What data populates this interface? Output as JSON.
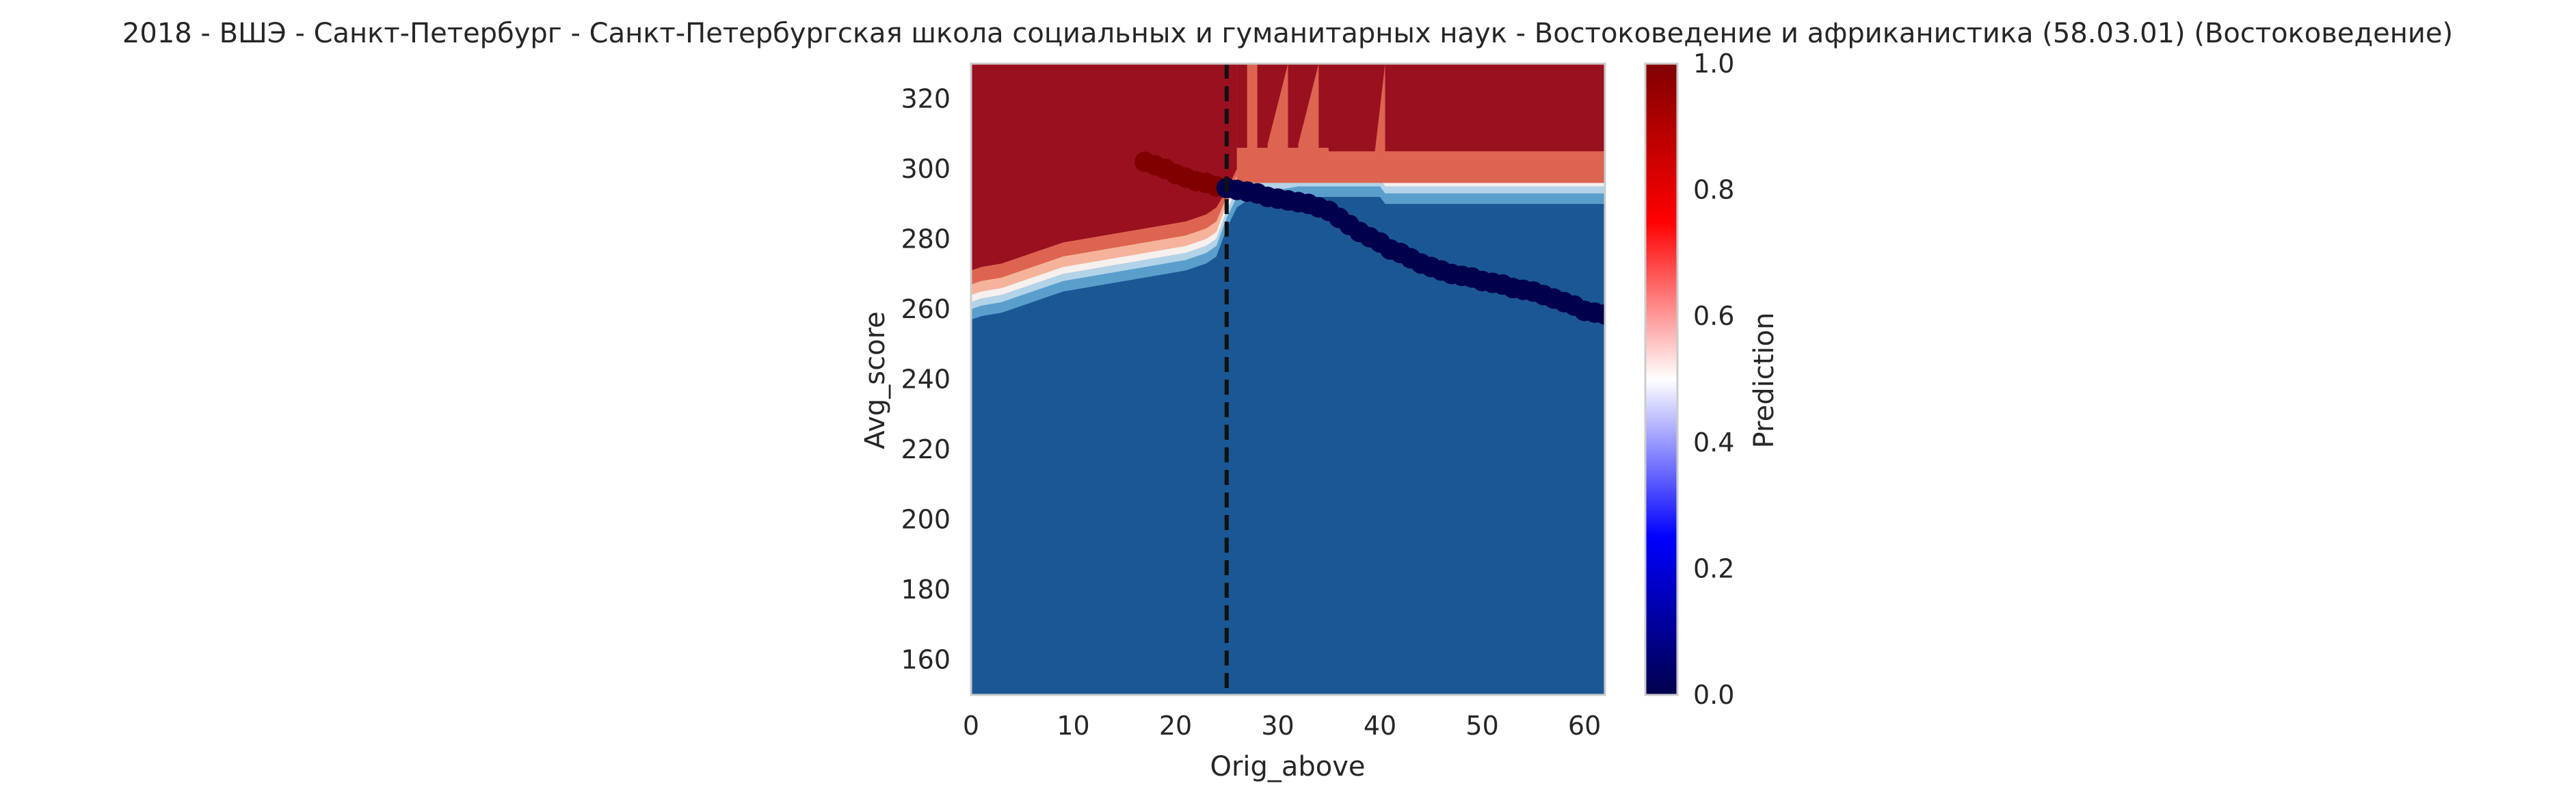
{
  "chart_data": {
    "type": "heatmap",
    "subtype": "filled-contour decision map with scatter overlay",
    "title": "2018 - ВШЭ - Санкт-Петербург - Санкт-Петербургская школа социальных и гуманитарных наук - Востоковедение и африканистика (58.03.01) (Востоковедение)",
    "xlabel": "Orig_above",
    "ylabel": "Avg_score",
    "xlim": [
      0,
      62
    ],
    "ylim": [
      150,
      330
    ],
    "x_ticks": [
      0,
      10,
      20,
      30,
      40,
      50,
      60
    ],
    "y_ticks": [
      160,
      180,
      200,
      220,
      240,
      260,
      280,
      300,
      320
    ],
    "grid": false,
    "colorbar": {
      "label": "Prediction",
      "range": [
        0,
        1
      ],
      "ticks": [
        "0.0",
        "0.2",
        "0.4",
        "0.6",
        "0.8",
        "1.0"
      ],
      "colormap": "seismic",
      "colors": [
        "#00004c",
        "#0000ff",
        "#ffffff",
        "#ff0000",
        "#800000"
      ]
    },
    "region_colors": {
      "high": "#99101f",
      "mid_high": "#dd6451",
      "light_high": "#f5b39b",
      "neutral": "#f6f0ee",
      "light_low": "#b3d3e8",
      "mid_low": "#5a9fcc",
      "low": "#1b5795"
    },
    "vertical_line": {
      "x": 25,
      "style": "dashed",
      "color": "#000000"
    },
    "boundary": {
      "x": [
        0,
        1,
        3,
        5,
        7,
        9,
        11,
        13,
        15,
        17,
        19,
        21,
        22,
        23,
        24,
        25,
        26,
        27,
        28,
        29,
        30,
        32,
        34,
        36,
        38,
        40,
        40.5,
        45,
        50,
        55,
        60,
        62
      ],
      "y": [
        262,
        263,
        264,
        266,
        268,
        270,
        271,
        272,
        273,
        274,
        275,
        276,
        277,
        278,
        280,
        288,
        294,
        296,
        296,
        296,
        296,
        297,
        297,
        297,
        297,
        297,
        295,
        295,
        295,
        295,
        295,
        295
      ]
    },
    "contour_offsets": {
      "left": [
        0,
        2,
        5,
        9,
        14
      ],
      "right": [
        0,
        2,
        4,
        6,
        8
      ]
    },
    "upper_bands": {
      "y_start": 296,
      "x": [
        26,
        27,
        28,
        29,
        31,
        32,
        34,
        35,
        39.5,
        40.5,
        62
      ],
      "y_top": [
        330,
        330,
        330,
        307,
        330,
        307,
        330,
        305,
        305,
        330,
        330
      ]
    },
    "lower_right_band": {
      "x": [
        40,
        45,
        50,
        55,
        60,
        62
      ],
      "y_low": [
        296,
        296,
        296,
        296,
        296,
        296
      ],
      "y_high": [
        303,
        303,
        303,
        303,
        303,
        303
      ]
    },
    "scatter": {
      "series": [
        {
          "prediction": 1,
          "color": "#800000",
          "x": [
            17,
            18,
            19,
            20,
            21,
            22,
            23,
            24,
            25
          ],
          "y": [
            302,
            301,
            300,
            298.5,
            297.5,
            296.5,
            296,
            295,
            294.5
          ]
        },
        {
          "prediction": 0,
          "color": "#00004c",
          "x": [
            25,
            26,
            27,
            28,
            29,
            30,
            31,
            32,
            33,
            34,
            35,
            36,
            37,
            38,
            39,
            40,
            41,
            42,
            43,
            44,
            45,
            46,
            47,
            48,
            49,
            50,
            51,
            52,
            53,
            54,
            55,
            56,
            57,
            58,
            59,
            60,
            61,
            62
          ],
          "y": [
            294.5,
            294,
            293.5,
            293,
            292,
            291.5,
            291,
            290.5,
            290,
            289,
            288,
            286,
            284,
            282,
            280.5,
            279,
            277,
            276,
            274.5,
            273,
            272,
            271,
            270,
            269.5,
            269,
            268,
            267.5,
            267,
            266,
            265.5,
            265,
            264,
            263,
            262,
            261,
            259.5,
            259,
            258.5
          ]
        }
      ]
    }
  }
}
